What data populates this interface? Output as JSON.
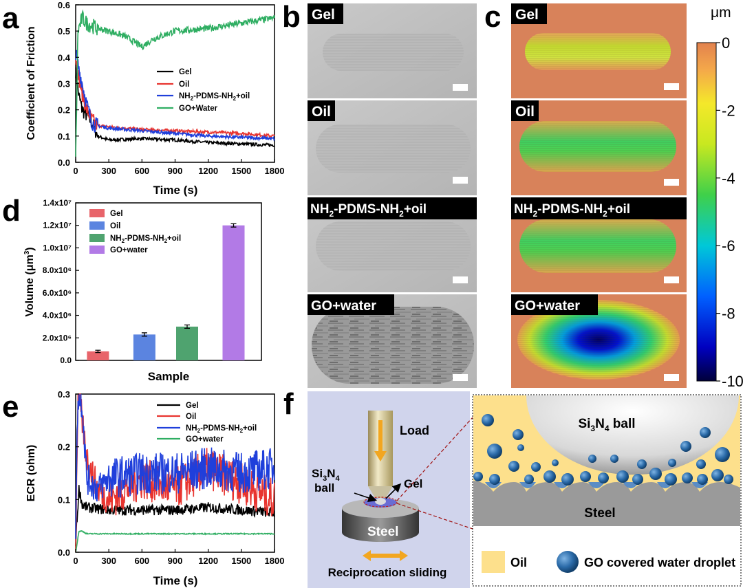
{
  "panels": {
    "a": "a",
    "b": "b",
    "c": "c",
    "d": "d",
    "e": "e",
    "f": "f"
  },
  "colors": {
    "gel": "#000000",
    "oil": "#e8342f",
    "pdms": "#1f3fdb",
    "go": "#2fae62",
    "bar_gel": "#e8646a",
    "bar_oil": "#5b84e0",
    "bar_pdms": "#4fa36f",
    "bar_go": "#b27ae6"
  },
  "chart_data": [
    {
      "id": "a",
      "type": "line",
      "xlabel": "Time (s)",
      "ylabel": "Coefficient  of Friction",
      "xlim": [
        0,
        1800
      ],
      "ylim": [
        0,
        0.6
      ],
      "xticks": [
        "0",
        "300",
        "600",
        "900",
        "1200",
        "1500",
        "1800"
      ],
      "yticks": [
        "0.0",
        "0.1",
        "0.2",
        "0.3",
        "0.4",
        "0.5",
        "0.6"
      ],
      "legend": [
        "Gel",
        "Oil",
        "NH2-PDMS-NH2+oil",
        "GO+Water"
      ],
      "series": [
        {
          "name": "Gel",
          "x": [
            0,
            30,
            60,
            100,
            150,
            200,
            300,
            600,
            900,
            1200,
            1500,
            1800
          ],
          "y": [
            0.35,
            0.25,
            0.2,
            0.18,
            0.15,
            0.1,
            0.085,
            0.09,
            0.085,
            0.075,
            0.07,
            0.065
          ]
        },
        {
          "name": "Oil",
          "x": [
            0,
            30,
            60,
            100,
            150,
            200,
            300,
            600,
            900,
            1200,
            1500,
            1800
          ],
          "y": [
            0.4,
            0.32,
            0.26,
            0.2,
            0.16,
            0.14,
            0.135,
            0.125,
            0.12,
            0.115,
            0.11,
            0.1
          ]
        },
        {
          "name": "NH2-PDMS-NH2+oil",
          "x": [
            0,
            30,
            60,
            100,
            150,
            200,
            300,
            600,
            900,
            1200,
            1500,
            1800
          ],
          "y": [
            0.42,
            0.35,
            0.3,
            0.22,
            0.15,
            0.14,
            0.13,
            0.12,
            0.11,
            0.1,
            0.095,
            0.09
          ]
        },
        {
          "name": "GO+Water",
          "x": [
            0,
            20,
            60,
            100,
            200,
            300,
            450,
            600,
            700,
            900,
            1200,
            1500,
            1800
          ],
          "y": [
            0.0,
            0.5,
            0.55,
            0.53,
            0.51,
            0.5,
            0.48,
            0.44,
            0.47,
            0.5,
            0.51,
            0.53,
            0.55
          ]
        }
      ]
    },
    {
      "id": "d",
      "type": "bar",
      "xlabel": "Sample",
      "ylabel": "Volume (μm³)",
      "ylim": [
        0,
        14000000
      ],
      "yticks": [
        "0.0",
        "2.0x10⁶",
        "4.0x10⁶",
        "6.0x10⁶",
        "8.0x10⁶",
        "1.0x10⁷",
        "1.2x10⁷",
        "1.4x10⁷"
      ],
      "categories": [
        "Gel",
        "Oil",
        "NH2-PDMS-NH2+oil",
        "GO+water"
      ],
      "values": [
        800000,
        2300000,
        3000000,
        12000000
      ],
      "errors": [
        100000,
        150000,
        150000,
        150000
      ]
    },
    {
      "id": "e",
      "type": "line",
      "xlabel": "Time (s)",
      "ylabel": "ECR (ohm)",
      "xlim": [
        0,
        1800
      ],
      "ylim": [
        0,
        0.3
      ],
      "xticks": [
        "0",
        "300",
        "600",
        "900",
        "1200",
        "1500",
        "1800"
      ],
      "yticks": [
        "0.0",
        "0.1",
        "0.2",
        "0.3"
      ],
      "legend": [
        "Gel",
        "Oil",
        "NH2-PDMS-NH2+oil",
        "GO+water"
      ],
      "series": [
        {
          "name": "Gel",
          "x": [
            0,
            30,
            60,
            100,
            300,
            600,
            900,
            1200,
            1500,
            1800
          ],
          "y": [
            0.02,
            0.12,
            0.09,
            0.085,
            0.08,
            0.08,
            0.08,
            0.085,
            0.08,
            0.075
          ]
        },
        {
          "name": "Oil",
          "x": [
            0,
            20,
            40,
            100,
            200,
            300,
            600,
            900,
            1200,
            1500,
            1800
          ],
          "y": [
            0.0,
            0.3,
            0.28,
            0.18,
            0.12,
            0.1,
            0.14,
            0.12,
            0.16,
            0.13,
            0.1
          ]
        },
        {
          "name": "NH2-PDMS-NH2+oil",
          "x": [
            0,
            20,
            60,
            100,
            200,
            300,
            600,
            900,
            1200,
            1500,
            1800
          ],
          "y": [
            0.05,
            0.3,
            0.28,
            0.14,
            0.12,
            0.14,
            0.15,
            0.15,
            0.16,
            0.15,
            0.16
          ]
        },
        {
          "name": "GO+water",
          "x": [
            0,
            30,
            60,
            100,
            200,
            300,
            600,
            900,
            1200,
            1500,
            1800
          ],
          "y": [
            0.0,
            0.04,
            0.04,
            0.035,
            0.035,
            0.035,
            0.035,
            0.035,
            0.035,
            0.035,
            0.035
          ]
        }
      ]
    }
  ],
  "panel_b": {
    "labels": [
      "Gel",
      "Oil",
      "NH2-PDMS-NH2+oil",
      "GO+water"
    ]
  },
  "panel_c": {
    "labels": [
      "Gel",
      "Oil",
      "NH2-PDMS-NH2+oil",
      "GO+water"
    ],
    "colorbar_unit": "μm",
    "colorbar_ticks": [
      "0",
      "-2",
      "-4",
      "-6",
      "-8",
      "-10"
    ]
  },
  "panel_f": {
    "load": "Load",
    "gel": "Gel",
    "steel": "Steel",
    "ball": "ball",
    "si": "Si",
    "n": "N",
    "sub3": "3",
    "sub4": "4",
    "sliding": "Reciprocation sliding",
    "zoom_ball": "Si3N4  ball",
    "zoom_steel": "Steel",
    "legend_oil": "Oil",
    "legend_droplet": "GO covered water droplet"
  }
}
